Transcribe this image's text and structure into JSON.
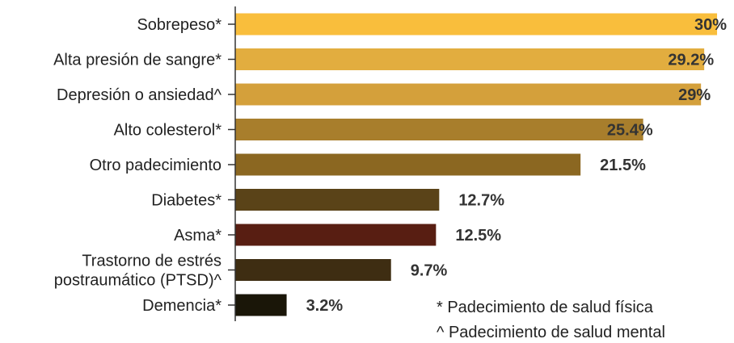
{
  "chart_data": {
    "type": "bar",
    "orientation": "horizontal",
    "categories": [
      [
        "Sobrepeso*"
      ],
      [
        "Alta presión de sangre*"
      ],
      [
        "Depresión o ansiedad^"
      ],
      [
        "Alto colesterol*"
      ],
      [
        "Otro padecimiento"
      ],
      [
        "Diabetes*"
      ],
      [
        "Asma*"
      ],
      [
        "Trastorno de estrés",
        "postraumático (PTSD)^"
      ],
      [
        "Demencia*"
      ]
    ],
    "values": [
      30,
      29.2,
      29,
      25.4,
      21.5,
      12.7,
      12.5,
      9.7,
      3.2
    ],
    "value_labels": [
      "30%",
      "29.2%",
      "29%",
      "25.4%",
      "21.5%",
      "12.7%",
      "12.5%",
      "9.7%",
      "3.2%"
    ],
    "colors": [
      "#F9BE3C",
      "#E2AD3F",
      "#D4A03B",
      "#A87E2C",
      "#8B6721",
      "#5A4318",
      "#581E12",
      "#3E2D12",
      "#1A1608"
    ],
    "xlim": [
      0,
      30.3
    ],
    "grid": false,
    "notes": [
      "* Padecimiento de salud física",
      "^ Padecimiento de salud mental"
    ]
  }
}
